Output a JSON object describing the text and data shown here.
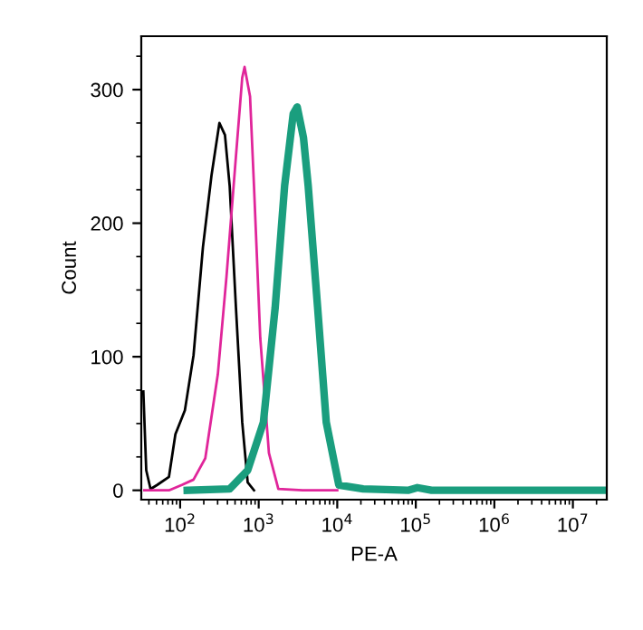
{
  "chart_data": {
    "type": "line",
    "xlabel": "PE-A",
    "ylabel": "Count",
    "log": "x",
    "grid": false,
    "legend": false,
    "marker": "none",
    "line_style": "solid",
    "xlim": [
      32,
      27000000
    ],
    "ylim": [
      -7,
      340
    ],
    "xticks": [
      {
        "value": 100,
        "label": "10$^{2}$"
      },
      {
        "value": 1000,
        "label": "10$^{3}$"
      },
      {
        "value": 10000,
        "label": "10$^{4}$"
      },
      {
        "value": 100000,
        "label": "10$^{5}$"
      },
      {
        "value": 1000000,
        "label": "10$^{6}$"
      },
      {
        "value": 10000000,
        "label": "10$^{7}$"
      }
    ],
    "yticks": [
      0,
      100,
      200,
      300
    ],
    "series": [
      {
        "color": "#000000",
        "x": [
          34,
          37,
          42,
          51,
          72,
          87,
          115,
          148,
          195,
          251,
          316,
          372,
          427,
          513,
          617,
          724,
          871
        ],
        "values": [
          74,
          15,
          1,
          4,
          10,
          42,
          60,
          101,
          182,
          236,
          275,
          266,
          228,
          137,
          51,
          6,
          0
        ]
      },
      {
        "color": "#e0259a",
        "x": [
          35,
          72,
          105,
          148,
          209,
          302,
          389,
          513,
          617,
          661,
          776,
          871,
          1047,
          1349,
          1778,
          3631,
          10000
        ],
        "values": [
          0,
          0,
          4,
          8,
          24,
          87,
          160,
          250,
          309,
          317,
          295,
          228,
          114,
          28,
          1,
          0,
          0
        ]
      },
      {
        "color": "#1a9e7e",
        "x": [
          123,
          427,
          724,
          1148,
          1622,
          2138,
          2754,
          3090,
          3715,
          4266,
          5623,
          7244,
          10471,
          21380,
          79430,
          104700,
          158500,
          25000000
        ],
        "values": [
          0,
          1,
          15,
          51,
          137,
          228,
          282,
          287,
          264,
          228,
          137,
          51,
          4,
          1,
          0,
          2,
          0,
          0
        ]
      }
    ]
  }
}
